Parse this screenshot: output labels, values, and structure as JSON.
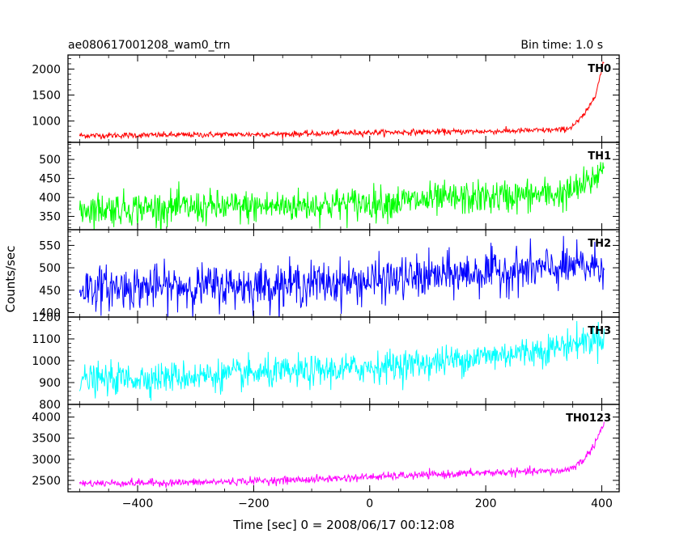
{
  "header": {
    "left_title": "ae080617001208_wam0_trn",
    "right_title": "Bin time: 1.0 s"
  },
  "chart_data": {
    "type": "line",
    "x_label": "Time [sec] 0 = 2008/06/17 00:12:08",
    "y_label": "Counts/sec",
    "xlim": [
      -520,
      430
    ],
    "x_ticks": [
      -400,
      -200,
      0,
      200,
      400
    ],
    "x_tick_labels": [
      "−400",
      "−200",
      "0",
      "200",
      "400"
    ],
    "x_range": [
      -500,
      404
    ],
    "bin_time_sec": 1.0,
    "panels": [
      {
        "label": "TH0",
        "color": "#ff0000",
        "ylim": [
          590,
          2270
        ],
        "y_ticks": [
          1000,
          1500,
          2000
        ],
        "y_tick_labels": [
          "1000",
          "1500",
          "2000"
        ],
        "base_points": [
          [
            -500,
            720
          ],
          [
            -300,
            735
          ],
          [
            -100,
            755
          ],
          [
            0,
            780
          ],
          [
            200,
            800
          ],
          [
            330,
            830
          ],
          [
            345,
            870
          ],
          [
            360,
            1000
          ],
          [
            375,
            1200
          ],
          [
            390,
            1550
          ],
          [
            404,
            2150
          ]
        ],
        "noise_sd": 28
      },
      {
        "label": "TH1",
        "color": "#00ff00",
        "ylim": [
          315,
          545
        ],
        "y_ticks": [
          350,
          400,
          450,
          500
        ],
        "y_tick_labels": [
          "350",
          "400",
          "450",
          "500"
        ],
        "base_points": [
          [
            -500,
            370
          ],
          [
            -200,
            375
          ],
          [
            0,
            385
          ],
          [
            200,
            400
          ],
          [
            340,
            410
          ],
          [
            380,
            440
          ],
          [
            404,
            480
          ]
        ],
        "noise_sd": 22
      },
      {
        "label": "TH2",
        "color": "#0000ff",
        "ylim": [
          390,
          585
        ],
        "y_ticks": [
          400,
          450,
          500,
          550
        ],
        "y_tick_labels": [
          "400",
          "450",
          "500",
          "550"
        ],
        "base_points": [
          [
            -500,
            455
          ],
          [
            -200,
            460
          ],
          [
            0,
            470
          ],
          [
            200,
            490
          ],
          [
            404,
            505
          ]
        ],
        "noise_sd": 24
      },
      {
        "label": "TH3",
        "color": "#00ffff",
        "ylim": [
          800,
          1200
        ],
        "y_ticks": [
          800,
          900,
          1000,
          1100,
          1200
        ],
        "y_tick_labels": [
          "800",
          "900",
          "1000",
          "1100",
          "1200"
        ],
        "base_points": [
          [
            -500,
            910
          ],
          [
            -300,
            930
          ],
          [
            -100,
            950
          ],
          [
            100,
            990
          ],
          [
            300,
            1050
          ],
          [
            404,
            1110
          ]
        ],
        "noise_sd": 35
      },
      {
        "label": "TH0123",
        "color": "#ff00ff",
        "ylim": [
          2230,
          4300
        ],
        "y_ticks": [
          2500,
          3000,
          3500,
          4000
        ],
        "y_tick_labels": [
          "2500",
          "3000",
          "3500",
          "4000"
        ],
        "base_points": [
          [
            -500,
            2430
          ],
          [
            -300,
            2450
          ],
          [
            -100,
            2520
          ],
          [
            0,
            2580
          ],
          [
            200,
            2680
          ],
          [
            330,
            2720
          ],
          [
            350,
            2800
          ],
          [
            370,
            3000
          ],
          [
            385,
            3300
          ],
          [
            404,
            3850
          ]
        ],
        "noise_sd": 45
      }
    ]
  }
}
